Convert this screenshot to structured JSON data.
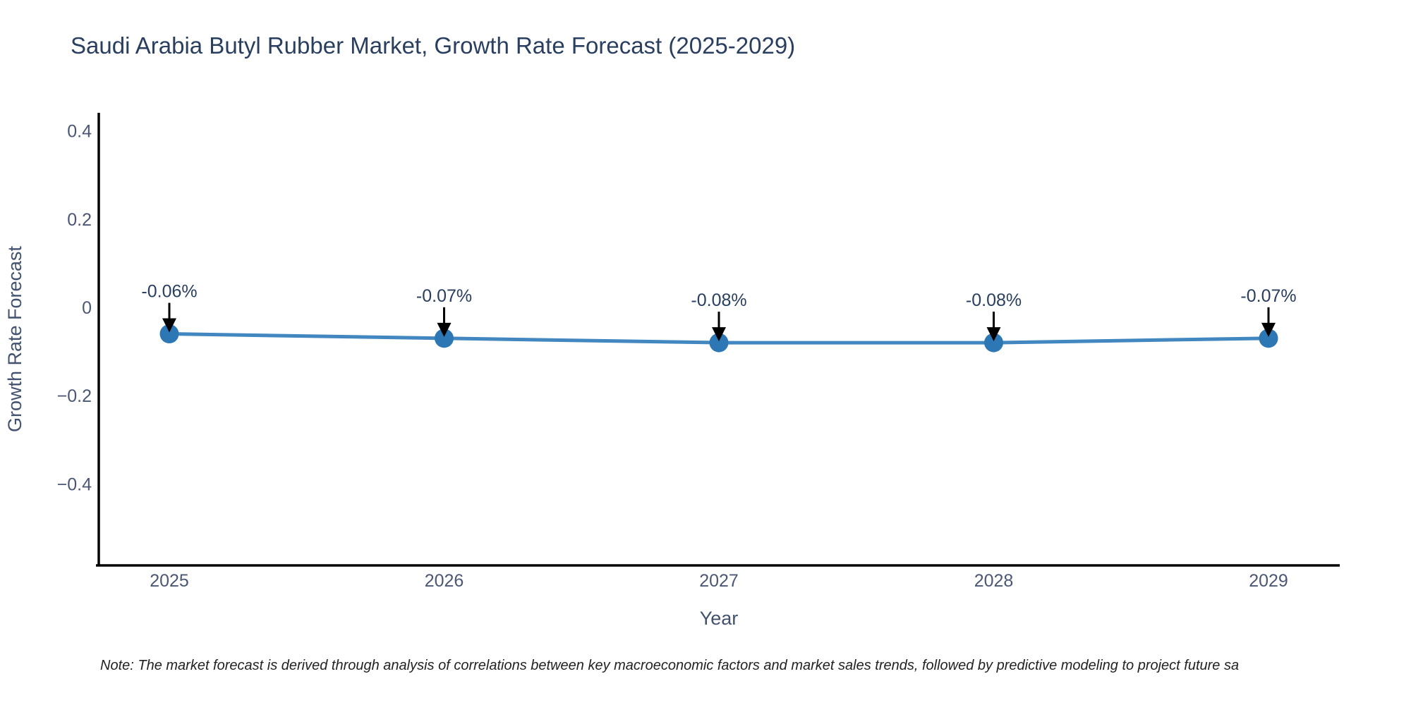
{
  "page": {
    "background_color": "#ffffff"
  },
  "header": {
    "title": "Saudi Arabia Butyl Rubber Market, Growth Rate Forecast (2025-2029)"
  },
  "footer": {
    "note": "Note: The market forecast is derived through analysis of correlations between key macroeconomic factors and market sales trends, followed by predictive modeling to project future sa"
  },
  "chart_data": {
    "type": "line",
    "title": "Saudi Arabia Butyl Rubber Market, Growth Rate Forecast (2025-2029)",
    "xlabel": "Year",
    "ylabel": "Growth Rate Forecast",
    "x": [
      2025,
      2026,
      2027,
      2028,
      2029
    ],
    "y": [
      -0.06,
      -0.07,
      -0.08,
      -0.08,
      -0.07
    ],
    "point_labels": [
      "-0.06%",
      "-0.07%",
      "-0.08%",
      "-0.08%",
      "-0.07%"
    ],
    "x_tick_labels": [
      "2025",
      "2026",
      "2027",
      "2028",
      "2029"
    ],
    "y_ticks": [
      {
        "value": 0.4,
        "label": "0.4"
      },
      {
        "value": 0.2,
        "label": "0.2"
      },
      {
        "value": 0,
        "label": "0"
      },
      {
        "value": -0.2,
        "label": "−0.2"
      },
      {
        "value": -0.4,
        "label": "−0.4"
      }
    ],
    "ylim": [
      -0.59,
      0.44
    ],
    "grid": false,
    "legend": false,
    "marker_style": "circle-with-down-arrow-annotation",
    "colors": {
      "line": "#4287c0",
      "marker": "#2e77b5",
      "axis": "#000000",
      "tick_text": "#4c5773",
      "axis_title_text": "#42526e",
      "title_text": "#2a3f5f",
      "annotation_text": "#2a3f5f",
      "arrow": "#000000",
      "note_text": "#222222"
    }
  }
}
